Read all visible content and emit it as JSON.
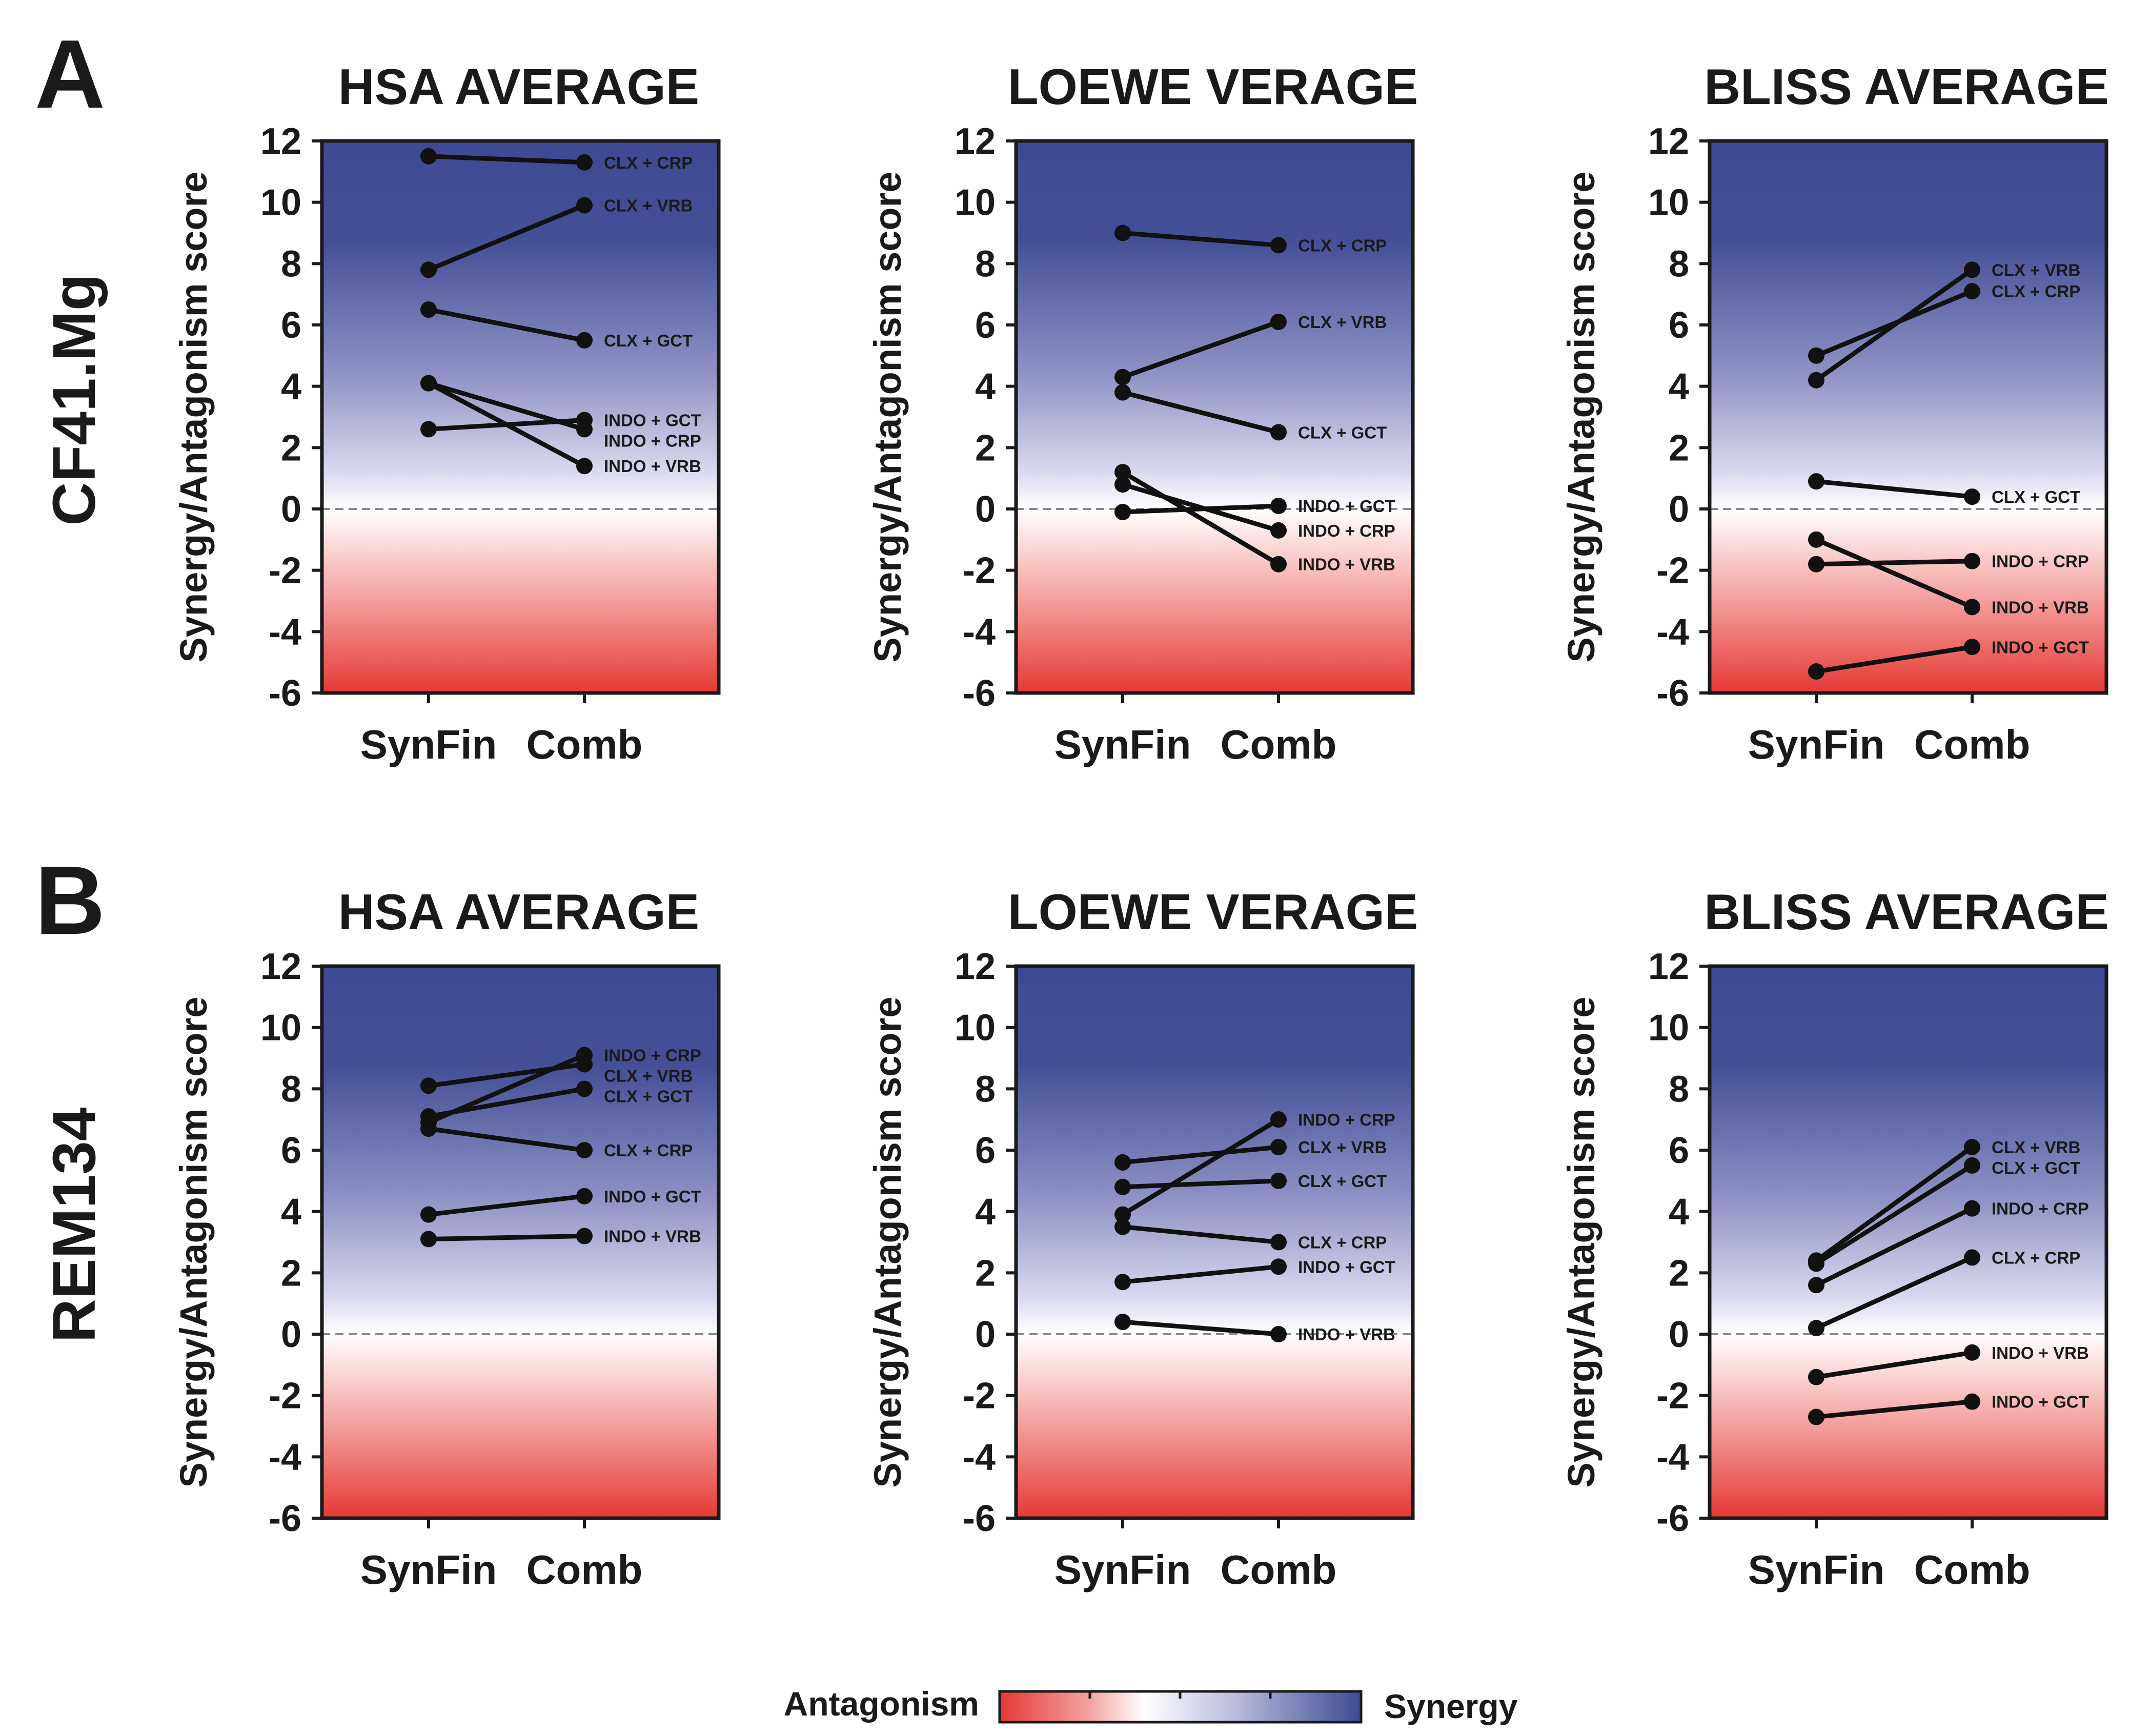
{
  "panel_labels": [
    "A",
    "B"
  ],
  "row_labels": [
    "CF41.Mg",
    "REM134"
  ],
  "legend": {
    "left": "Antagonism",
    "right": "Synergy",
    "colors": {
      "antagonism": "#e53935",
      "neutral": "#ffffff",
      "synergy": "#3d4a93"
    }
  },
  "chart_data": [
    {
      "type": "line",
      "panel": "A",
      "row_label": "CF41.Mg",
      "title": "HSA AVERAGE",
      "ylabel": "Synergy/Antagonism score",
      "categories": [
        "SynFin",
        "Comb"
      ],
      "ylim": [
        -6,
        12
      ],
      "yticks": [
        12,
        10,
        8,
        6,
        4,
        2,
        0,
        -2,
        -4,
        -6
      ],
      "zero_line": "dashed",
      "series": [
        {
          "name": "CLX + CRP",
          "values": [
            11.5,
            11.3
          ]
        },
        {
          "name": "CLX + VRB",
          "values": [
            7.8,
            9.9
          ]
        },
        {
          "name": "CLX + GCT",
          "values": [
            6.5,
            5.5
          ]
        },
        {
          "name": "INDO + GCT",
          "values": [
            2.6,
            2.9
          ]
        },
        {
          "name": "INDO + CRP",
          "values": [
            4.1,
            2.6
          ]
        },
        {
          "name": "INDO + VRB",
          "values": [
            4.1,
            1.4
          ]
        }
      ]
    },
    {
      "type": "line",
      "panel": "A",
      "row_label": "CF41.Mg",
      "title": "LOEWE VERAGE",
      "ylabel": "Synergy/Antagonism score",
      "categories": [
        "SynFin",
        "Comb"
      ],
      "ylim": [
        -6,
        12
      ],
      "yticks": [
        12,
        10,
        8,
        6,
        4,
        2,
        0,
        -2,
        -4,
        -6
      ],
      "zero_line": "dashed",
      "series": [
        {
          "name": "CLX + CRP",
          "values": [
            9.0,
            8.6
          ]
        },
        {
          "name": "CLX + VRB",
          "values": [
            4.3,
            6.1
          ]
        },
        {
          "name": "CLX + GCT",
          "values": [
            3.8,
            2.5
          ]
        },
        {
          "name": "INDO + GCT",
          "values": [
            -0.1,
            0.1
          ]
        },
        {
          "name": "INDO + CRP",
          "values": [
            0.8,
            -0.7
          ]
        },
        {
          "name": "INDO + VRB",
          "values": [
            1.2,
            -1.8
          ]
        }
      ]
    },
    {
      "type": "line",
      "panel": "A",
      "row_label": "CF41.Mg",
      "title": "BLISS AVERAGE",
      "ylabel": "Synergy/Antagonism score",
      "categories": [
        "SynFin",
        "Comb"
      ],
      "ylim": [
        -6,
        12
      ],
      "yticks": [
        12,
        10,
        8,
        6,
        4,
        2,
        0,
        -2,
        -4,
        -6
      ],
      "zero_line": "dashed",
      "series": [
        {
          "name": "CLX + VRB",
          "values": [
            4.2,
            7.8
          ]
        },
        {
          "name": "CLX + CRP",
          "values": [
            5.0,
            7.1
          ]
        },
        {
          "name": "CLX + GCT",
          "values": [
            0.9,
            0.4
          ]
        },
        {
          "name": "INDO + CRP",
          "values": [
            -1.8,
            -1.7
          ]
        },
        {
          "name": "INDO + VRB",
          "values": [
            -1.0,
            -3.2
          ]
        },
        {
          "name": "INDO + GCT",
          "values": [
            -5.3,
            -4.5
          ]
        }
      ]
    },
    {
      "type": "line",
      "panel": "B",
      "row_label": "REM134",
      "title": "HSA AVERAGE",
      "ylabel": "Synergy/Antagonism score",
      "categories": [
        "SynFin",
        "Comb"
      ],
      "ylim": [
        -6,
        12
      ],
      "yticks": [
        12,
        10,
        8,
        6,
        4,
        2,
        0,
        -2,
        -4,
        -6
      ],
      "zero_line": "dashed",
      "series": [
        {
          "name": "INDO + CRP",
          "values": [
            6.9,
            9.1
          ]
        },
        {
          "name": "CLX + VRB",
          "values": [
            8.1,
            8.8
          ]
        },
        {
          "name": "CLX + GCT",
          "values": [
            7.1,
            8.0
          ]
        },
        {
          "name": "CLX + CRP",
          "values": [
            6.7,
            6.0
          ]
        },
        {
          "name": "INDO + GCT",
          "values": [
            3.9,
            4.5
          ]
        },
        {
          "name": "INDO + VRB",
          "values": [
            3.1,
            3.2
          ]
        }
      ]
    },
    {
      "type": "line",
      "panel": "B",
      "row_label": "REM134",
      "title": "LOEWE VERAGE",
      "ylabel": "Synergy/Antagonism score",
      "categories": [
        "SynFin",
        "Comb"
      ],
      "ylim": [
        -6,
        12
      ],
      "yticks": [
        12,
        10,
        8,
        6,
        4,
        2,
        0,
        -2,
        -4,
        -6
      ],
      "zero_line": "dashed",
      "series": [
        {
          "name": "INDO + CRP",
          "values": [
            3.9,
            7.0
          ]
        },
        {
          "name": "CLX + VRB",
          "values": [
            5.6,
            6.1
          ]
        },
        {
          "name": "CLX + GCT",
          "values": [
            4.8,
            5.0
          ]
        },
        {
          "name": "CLX + CRP",
          "values": [
            3.5,
            3.0
          ]
        },
        {
          "name": "INDO + GCT",
          "values": [
            1.7,
            2.2
          ]
        },
        {
          "name": "INDO + VRB",
          "values": [
            0.4,
            0.0
          ]
        }
      ]
    },
    {
      "type": "line",
      "panel": "B",
      "row_label": "REM134",
      "title": "BLISS AVERAGE",
      "ylabel": "Synergy/Antagonism score",
      "categories": [
        "SynFin",
        "Comb"
      ],
      "ylim": [
        -6,
        12
      ],
      "yticks": [
        12,
        10,
        8,
        6,
        4,
        2,
        0,
        -2,
        -4,
        -6
      ],
      "zero_line": "dashed",
      "series": [
        {
          "name": "CLX + VRB",
          "values": [
            2.4,
            6.1
          ]
        },
        {
          "name": "CLX + GCT",
          "values": [
            2.3,
            5.5
          ]
        },
        {
          "name": "INDO + CRP",
          "values": [
            1.6,
            4.1
          ]
        },
        {
          "name": "CLX + CRP",
          "values": [
            0.2,
            2.5
          ]
        },
        {
          "name": "INDO + VRB",
          "values": [
            -1.4,
            -0.6
          ]
        },
        {
          "name": "INDO + GCT",
          "values": [
            -2.7,
            -2.2
          ]
        }
      ]
    }
  ]
}
